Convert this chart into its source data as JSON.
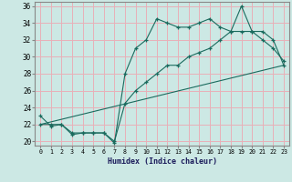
{
  "xlabel": "Humidex (Indice chaleur)",
  "xlim": [
    -0.5,
    23.5
  ],
  "ylim": [
    19.5,
    36.5
  ],
  "xticks": [
    0,
    1,
    2,
    3,
    4,
    5,
    6,
    7,
    8,
    9,
    10,
    11,
    12,
    13,
    14,
    15,
    16,
    17,
    18,
    19,
    20,
    21,
    22,
    23
  ],
  "yticks": [
    20,
    22,
    24,
    26,
    28,
    30,
    32,
    34,
    36
  ],
  "bg_color": "#cce8e4",
  "grid_color": "#e8b0b8",
  "line_color": "#1a6b5e",
  "line1_x": [
    0,
    1,
    2,
    3,
    4,
    5,
    6,
    7,
    8,
    9,
    10,
    11,
    12,
    13,
    14,
    15,
    16,
    17,
    18,
    19,
    20,
    21,
    22,
    23
  ],
  "line1_y": [
    23,
    21.8,
    22,
    20.8,
    21,
    21,
    21,
    19.8,
    28,
    31,
    32,
    34.5,
    34,
    33.5,
    33.5,
    34,
    34.5,
    33.5,
    33,
    36,
    33,
    32,
    31,
    29.5
  ],
  "line2_x": [
    0,
    1,
    2,
    3,
    4,
    5,
    6,
    7,
    8,
    9,
    10,
    11,
    12,
    13,
    14,
    15,
    16,
    17,
    18,
    19,
    20,
    21,
    22,
    23
  ],
  "line2_y": [
    22,
    22,
    22,
    21,
    21,
    21,
    21,
    20,
    24.5,
    26,
    27,
    28,
    29,
    29,
    30,
    30.5,
    31,
    32,
    33,
    33,
    33,
    33,
    32,
    29
  ],
  "line3_x": [
    0,
    23
  ],
  "line3_y": [
    22,
    29
  ]
}
